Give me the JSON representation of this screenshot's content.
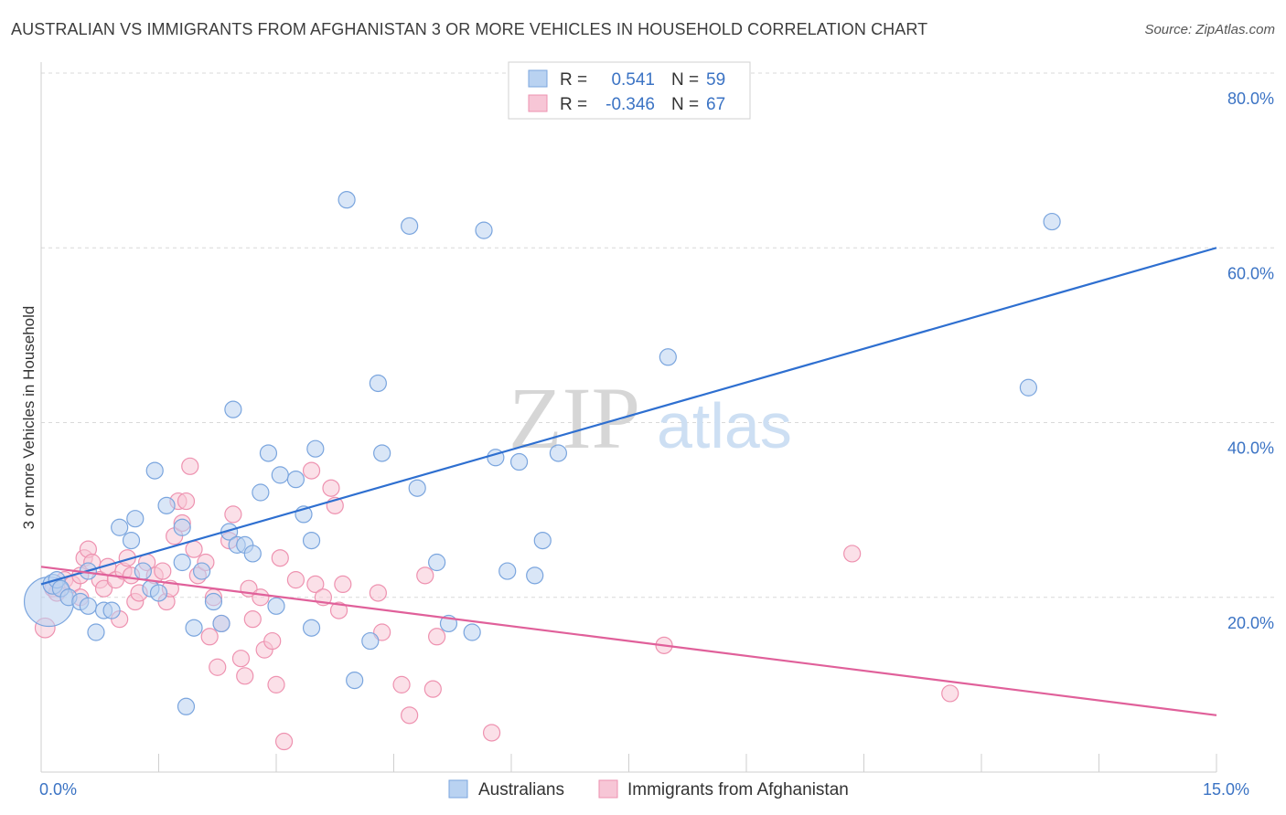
{
  "title": "AUSTRALIAN VS IMMIGRANTS FROM AFGHANISTAN 3 OR MORE VEHICLES IN HOUSEHOLD CORRELATION CHART",
  "source": "Source: ZipAtlas.com",
  "watermark": {
    "zip": "ZIP",
    "atlas": "atlas"
  },
  "colors": {
    "blue_fill": "#b9d2f1",
    "blue_stroke": "#7aa5de",
    "blue_line": "#2e6fd0",
    "pink_fill": "#f7c6d6",
    "pink_stroke": "#ee92b0",
    "pink_line": "#e0609a",
    "grid": "#d9d9d9",
    "axis_label": "#3b73c4"
  },
  "legend": {
    "rows": [
      {
        "r_label": "R =",
        "r_value": "0.541",
        "n_label": "N =",
        "n_value": "59"
      },
      {
        "r_label": "R =",
        "r_value": "-0.346",
        "n_label": "N =",
        "n_value": "67"
      }
    ]
  },
  "bottom_legend": [
    "Australians",
    "Immigrants from Afghanistan"
  ],
  "chart_data": {
    "type": "scatter",
    "title": "AUSTRALIAN VS IMMIGRANTS FROM AFGHANISTAN 3 OR MORE VEHICLES IN HOUSEHOLD CORRELATION CHART",
    "xlabel": "",
    "ylabel": "3 or more Vehicles in Household",
    "xlim": [
      0,
      15
    ],
    "ylim": [
      0,
      80
    ],
    "x_tick_labels": [
      {
        "value": 0,
        "label": "0.0%"
      },
      {
        "value": 15,
        "label": "15.0%"
      }
    ],
    "y_tick_labels": [
      {
        "value": 20,
        "label": "20.0%"
      },
      {
        "value": 40,
        "label": "40.0%"
      },
      {
        "value": 60,
        "label": "60.0%"
      },
      {
        "value": 80,
        "label": "80.0%"
      }
    ],
    "grid": true,
    "legend_position": "top-center",
    "series": [
      {
        "name": "Australians",
        "r": 0.541,
        "n": 59,
        "trend": {
          "x": [
            0,
            15
          ],
          "y": [
            21.5,
            60.0
          ]
        },
        "points": [
          [
            0.1,
            19.5,
            30
          ],
          [
            0.15,
            21.5,
            12
          ],
          [
            0.2,
            22,
            10
          ],
          [
            0.25,
            21,
            10
          ],
          [
            0.35,
            20,
            10
          ],
          [
            0.5,
            19.5,
            10
          ],
          [
            0.6,
            23,
            10
          ],
          [
            0.6,
            19,
            10
          ],
          [
            0.7,
            16,
            10
          ],
          [
            0.8,
            18.5,
            10
          ],
          [
            0.9,
            18.5,
            10
          ],
          [
            1.0,
            28,
            10
          ],
          [
            1.15,
            26.5,
            10
          ],
          [
            1.2,
            29,
            10
          ],
          [
            1.3,
            23,
            10
          ],
          [
            1.4,
            21,
            10
          ],
          [
            1.45,
            34.5,
            10
          ],
          [
            1.5,
            20.5,
            10
          ],
          [
            1.6,
            30.5,
            10
          ],
          [
            1.8,
            28,
            10
          ],
          [
            1.8,
            24,
            10
          ],
          [
            1.85,
            7.5,
            10
          ],
          [
            1.95,
            16.5,
            10
          ],
          [
            2.05,
            23,
            10
          ],
          [
            2.2,
            19.5,
            10
          ],
          [
            2.3,
            17,
            10
          ],
          [
            2.4,
            27.5,
            10
          ],
          [
            2.45,
            41.5,
            10
          ],
          [
            2.5,
            26,
            10
          ],
          [
            2.6,
            26,
            10
          ],
          [
            2.7,
            25,
            10
          ],
          [
            2.8,
            32,
            10
          ],
          [
            2.9,
            36.5,
            10
          ],
          [
            3.0,
            19,
            10
          ],
          [
            3.05,
            34,
            10
          ],
          [
            3.25,
            33.5,
            10
          ],
          [
            3.35,
            29.5,
            10
          ],
          [
            3.45,
            16.5,
            10
          ],
          [
            3.45,
            26.5,
            10
          ],
          [
            3.5,
            37,
            10
          ],
          [
            3.9,
            65.5,
            10
          ],
          [
            4.0,
            10.5,
            10
          ],
          [
            4.2,
            15,
            10
          ],
          [
            4.3,
            44.5,
            10
          ],
          [
            4.35,
            36.5,
            10
          ],
          [
            4.7,
            62.5,
            10
          ],
          [
            4.8,
            32.5,
            10
          ],
          [
            5.05,
            24,
            10
          ],
          [
            5.2,
            17,
            10
          ],
          [
            5.5,
            16,
            10
          ],
          [
            5.65,
            62,
            10
          ],
          [
            5.8,
            36,
            10
          ],
          [
            5.95,
            23,
            10
          ],
          [
            6.1,
            35.5,
            10
          ],
          [
            6.3,
            22.5,
            10
          ],
          [
            6.4,
            26.5,
            10
          ],
          [
            6.6,
            36.5,
            10
          ],
          [
            8.0,
            47.5,
            10
          ],
          [
            12.6,
            44,
            10
          ],
          [
            12.9,
            63,
            10
          ]
        ]
      },
      {
        "name": "Immigrants from Afghanistan",
        "r": -0.346,
        "n": 67,
        "trend": {
          "x": [
            0,
            15
          ],
          "y": [
            23.5,
            6.5
          ]
        },
        "points": [
          [
            0.05,
            16.5,
            12
          ],
          [
            0.15,
            21,
            10
          ],
          [
            0.2,
            20.5,
            10
          ],
          [
            0.3,
            22,
            10
          ],
          [
            0.4,
            21.5,
            10
          ],
          [
            0.5,
            20,
            10
          ],
          [
            0.5,
            22.5,
            10
          ],
          [
            0.55,
            24.5,
            10
          ],
          [
            0.6,
            25.5,
            10
          ],
          [
            0.65,
            24,
            10
          ],
          [
            0.75,
            22,
            10
          ],
          [
            0.8,
            21,
            10
          ],
          [
            0.85,
            23.5,
            10
          ],
          [
            0.95,
            22,
            10
          ],
          [
            1.0,
            17.5,
            10
          ],
          [
            1.05,
            23,
            10
          ],
          [
            1.1,
            24.5,
            10
          ],
          [
            1.15,
            22.5,
            10
          ],
          [
            1.2,
            19.5,
            10
          ],
          [
            1.25,
            20.5,
            10
          ],
          [
            1.35,
            24,
            10
          ],
          [
            1.45,
            22.5,
            10
          ],
          [
            1.55,
            23,
            10
          ],
          [
            1.6,
            19.5,
            10
          ],
          [
            1.65,
            21,
            10
          ],
          [
            1.7,
            27,
            10
          ],
          [
            1.75,
            31,
            10
          ],
          [
            1.8,
            28.5,
            10
          ],
          [
            1.85,
            31,
            10
          ],
          [
            1.9,
            35,
            10
          ],
          [
            1.95,
            25.5,
            10
          ],
          [
            2.0,
            22.5,
            10
          ],
          [
            2.1,
            24,
            10
          ],
          [
            2.15,
            15.5,
            10
          ],
          [
            2.2,
            20,
            10
          ],
          [
            2.25,
            12,
            10
          ],
          [
            2.3,
            17,
            10
          ],
          [
            2.4,
            26.5,
            10
          ],
          [
            2.45,
            29.5,
            10
          ],
          [
            2.55,
            13,
            10
          ],
          [
            2.6,
            11,
            10
          ],
          [
            2.65,
            21,
            10
          ],
          [
            2.7,
            17.5,
            10
          ],
          [
            2.8,
            20,
            10
          ],
          [
            2.85,
            14,
            10
          ],
          [
            2.95,
            15,
            10
          ],
          [
            3.0,
            10,
            10
          ],
          [
            3.05,
            24.5,
            10
          ],
          [
            3.1,
            3.5,
            10
          ],
          [
            3.25,
            22,
            10
          ],
          [
            3.45,
            34.5,
            10
          ],
          [
            3.5,
            21.5,
            10
          ],
          [
            3.6,
            20,
            10
          ],
          [
            3.7,
            32.5,
            10
          ],
          [
            3.75,
            30.5,
            10
          ],
          [
            3.8,
            18.5,
            10
          ],
          [
            3.85,
            21.5,
            10
          ],
          [
            4.3,
            20.5,
            10
          ],
          [
            4.35,
            16,
            10
          ],
          [
            4.6,
            10,
            10
          ],
          [
            4.7,
            6.5,
            10
          ],
          [
            4.9,
            22.5,
            10
          ],
          [
            5.0,
            9.5,
            10
          ],
          [
            5.05,
            15.5,
            10
          ],
          [
            5.75,
            4.5,
            10
          ],
          [
            7.95,
            14.5,
            10
          ],
          [
            10.35,
            25,
            10
          ],
          [
            11.6,
            9,
            10
          ]
        ]
      }
    ]
  }
}
